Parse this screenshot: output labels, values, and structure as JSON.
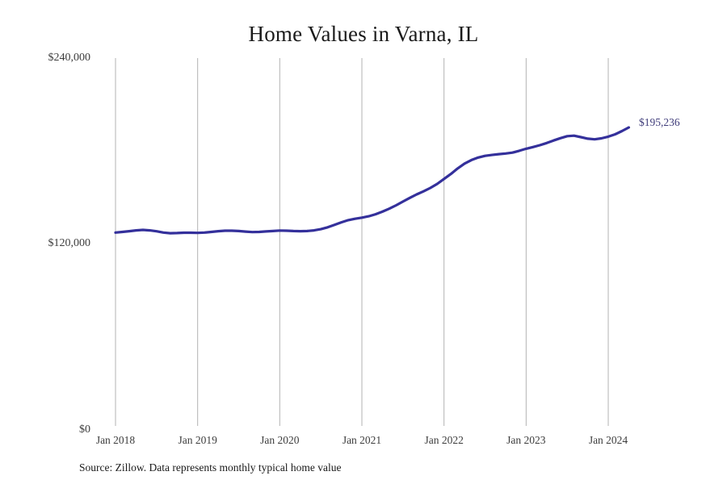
{
  "chart_data": {
    "type": "line",
    "title": "Home Values in Varna, IL",
    "xlabel": "",
    "ylabel": "",
    "ylim": [
      0,
      240000
    ],
    "grid": "vertical-only",
    "legend": "none",
    "x_tick_labels": [
      "Jan 2018",
      "Jan 2019",
      "Jan 2020",
      "Jan 2021",
      "Jan 2022",
      "Jan 2023",
      "Jan 2024"
    ],
    "y_ticks": [
      {
        "value": 0,
        "label": "$0"
      },
      {
        "value": 120000,
        "label": "$120,000"
      },
      {
        "value": 240000,
        "label": "$240,000"
      }
    ],
    "end_label": "$195,236",
    "end_value": 195236,
    "source": "Source: Zillow. Data represents monthly typical home value",
    "colors": {
      "line": "#34309b",
      "end_label_text": "#3f3c7a",
      "grid": "#b3b3b3",
      "axis_text": "#3d3d3d",
      "title_text": "#1a1a1a"
    },
    "series": [
      {
        "name": "Monthly typical home value",
        "start_label": "Jan 2018",
        "points_per_year": 12,
        "values": [
          127400,
          127800,
          128300,
          128800,
          129100,
          128800,
          128200,
          127400,
          127000,
          127100,
          127300,
          127300,
          127200,
          127400,
          127800,
          128300,
          128600,
          128600,
          128400,
          128000,
          127700,
          127800,
          128100,
          128400,
          128700,
          128600,
          128400,
          128300,
          128400,
          128800,
          129600,
          130800,
          132400,
          134000,
          135400,
          136300,
          137000,
          137900,
          139200,
          140900,
          142800,
          145000,
          147400,
          149800,
          152000,
          154000,
          156200,
          158800,
          162000,
          165200,
          168800,
          171900,
          174200,
          175800,
          176900,
          177500,
          178000,
          178400,
          179000,
          180200,
          181500,
          182600,
          183800,
          185200,
          186800,
          188300,
          189600,
          189900,
          189000,
          188000,
          187600,
          188200,
          189300,
          190800,
          192900,
          195236
        ]
      }
    ]
  }
}
